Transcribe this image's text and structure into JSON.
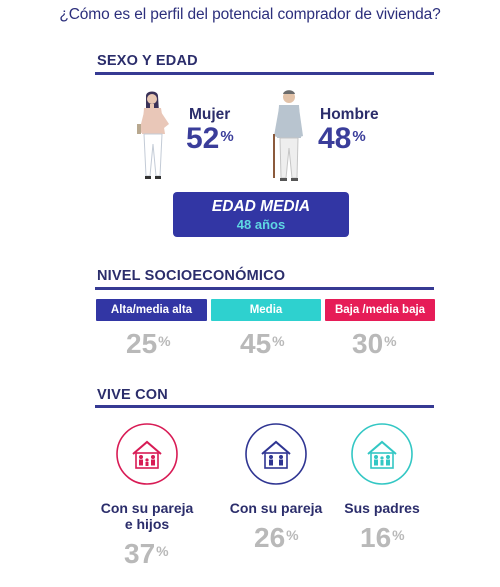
{
  "title": "¿Cómo es el perfil del potencial comprador de vivienda?",
  "percent_sign": "%",
  "sexo_edad": {
    "heading": "SEXO Y EDAD",
    "mujer": {
      "label": "Mujer",
      "value": "52"
    },
    "hombre": {
      "label": "Hombre",
      "value": "48"
    },
    "edad_label": "EDAD MEDIA",
    "edad_value": "48 años"
  },
  "nivel": {
    "heading": "NIVEL SOCIOECONÓMICO",
    "items": [
      {
        "label": "Alta/media alta",
        "value": "25",
        "color": "#3236a4"
      },
      {
        "label": "Media",
        "value": "45",
        "color": "#2ed1cf"
      },
      {
        "label": "Baja /media baja",
        "value": "30",
        "color": "#e61c57"
      }
    ]
  },
  "vive": {
    "heading": "VIVE CON",
    "items": [
      {
        "label1": "Con su pareja",
        "label2": "e hijos",
        "value": "37",
        "color": "#d81b55"
      },
      {
        "label1": "Con su pareja",
        "label2": "",
        "value": "26",
        "color": "#2f3592"
      },
      {
        "label1": "Sus padres",
        "label2": "",
        "value": "16",
        "color": "#33c7c4"
      }
    ]
  },
  "chart_data": [
    {
      "type": "table",
      "categories": [
        "Mujer",
        "Hombre"
      ],
      "values": [
        52,
        48
      ],
      "unit": "%",
      "extra": {
        "EDAD MEDIA": "48 años"
      }
    },
    {
      "type": "table",
      "title": "NIVEL SOCIOECONÓMICO",
      "categories": [
        "Alta/media alta",
        "Media",
        "Baja /media baja"
      ],
      "values": [
        25,
        45,
        30
      ],
      "unit": "%"
    },
    {
      "type": "table",
      "title": "VIVE CON",
      "categories": [
        "Con su pareja e hijos",
        "Con su pareja",
        "Sus padres"
      ],
      "values": [
        37,
        26,
        16
      ],
      "unit": "%"
    }
  ]
}
